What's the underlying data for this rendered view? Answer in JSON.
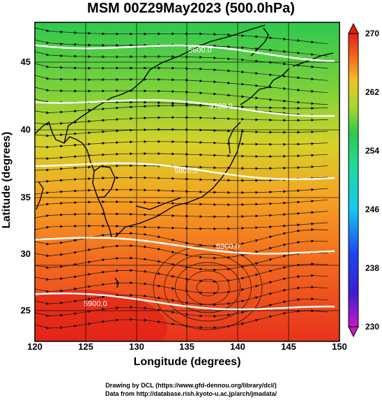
{
  "title": "MSM 00Z29May2023 (500.0hPa)",
  "x_axis": {
    "label": "Longitude (degrees)",
    "ticks": [
      "120",
      "125",
      "130",
      "135",
      "140",
      "145",
      "150"
    ]
  },
  "y_axis": {
    "label": "Latitude  (degrees)",
    "ticks": [
      "45",
      "40",
      "35",
      "30",
      "25"
    ]
  },
  "colorbar": {
    "ticks": [
      "270",
      "262",
      "254",
      "246",
      "238",
      "230"
    ]
  },
  "contours": [
    {
      "label": "5600.0",
      "lat": 46.0
    },
    {
      "label": "5700.0",
      "lat": 41.5
    },
    {
      "label": "5800.0",
      "lat": 36.3
    },
    {
      "label": "5900.0",
      "lat": 30.2
    },
    {
      "label": "5900.0",
      "lat": 25.6
    }
  ],
  "credits": {
    "line1": "Drawing by DCL (https://www.gfd-dennou.org/library/dcl/)",
    "line2": "Data from http://database.rish.kyoto-u.ac.jp/arch/jmadata/"
  }
}
